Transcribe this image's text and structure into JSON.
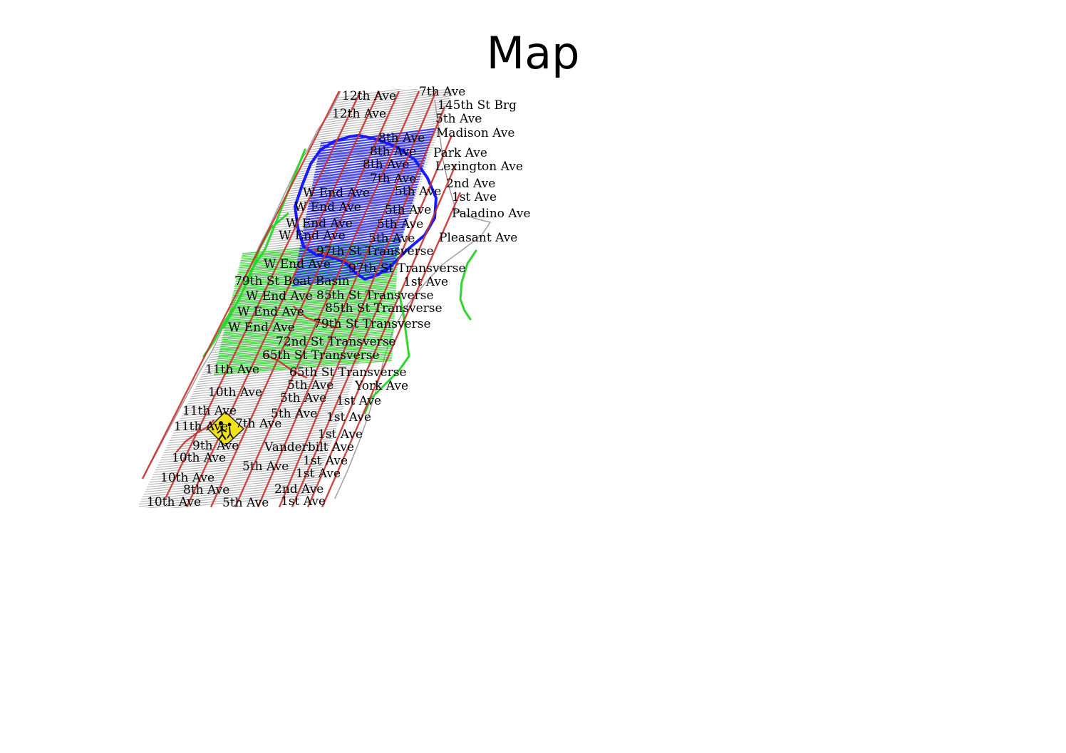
{
  "title": "Map",
  "colors": {
    "background": "#ffffff",
    "street_grid": "#9e9e9e",
    "avenue": "#c8322e",
    "park_path": "#2fd62f",
    "highlight": "#1a1aff",
    "marker": "#f2e21a"
  },
  "marker_icon": "pedestrian-crossing-warning-icon",
  "labels": [
    {
      "text": "7th Ave"
    },
    {
      "text": "12th Ave"
    },
    {
      "text": "145th St Brg"
    },
    {
      "text": "12th Ave"
    },
    {
      "text": "5th Ave"
    },
    {
      "text": "Madison Ave"
    },
    {
      "text": "8th Ave"
    },
    {
      "text": "Park Ave"
    },
    {
      "text": "8th Ave"
    },
    {
      "text": "Lexington Ave"
    },
    {
      "text": "8th Ave"
    },
    {
      "text": "7th Ave"
    },
    {
      "text": "2nd Ave"
    },
    {
      "text": "W End Ave"
    },
    {
      "text": "5th Ave"
    },
    {
      "text": "1st Ave"
    },
    {
      "text": "W End Ave"
    },
    {
      "text": "5th Ave"
    },
    {
      "text": "Paladino Ave"
    },
    {
      "text": "W End Ave"
    },
    {
      "text": "5th Ave"
    },
    {
      "text": "W End Ave"
    },
    {
      "text": "5th Ave"
    },
    {
      "text": "Pleasant Ave"
    },
    {
      "text": "97th St Transverse"
    },
    {
      "text": "W End Ave"
    },
    {
      "text": "97th St Transverse"
    },
    {
      "text": "79th St Boat Basin"
    },
    {
      "text": "1st Ave"
    },
    {
      "text": "W End Ave"
    },
    {
      "text": "85th St Transverse"
    },
    {
      "text": "85th St Transverse"
    },
    {
      "text": "W End Ave"
    },
    {
      "text": "79th St Transverse"
    },
    {
      "text": "W End Ave"
    },
    {
      "text": "72nd St Transverse"
    },
    {
      "text": "65th St Transverse"
    },
    {
      "text": "11th Ave"
    },
    {
      "text": "65th St Transverse"
    },
    {
      "text": "5th Ave"
    },
    {
      "text": "York Ave"
    },
    {
      "text": "10th Ave"
    },
    {
      "text": "5th Ave"
    },
    {
      "text": "1st Ave"
    },
    {
      "text": "11th Ave"
    },
    {
      "text": "5th Ave"
    },
    {
      "text": "1st Ave"
    },
    {
      "text": "11th Ave"
    },
    {
      "text": "7th Ave"
    },
    {
      "text": "1st Ave"
    },
    {
      "text": "9th Ave"
    },
    {
      "text": "Vanderbilt Ave"
    },
    {
      "text": "10th Ave"
    },
    {
      "text": "1st Ave"
    },
    {
      "text": "5th Ave"
    },
    {
      "text": "1st Ave"
    },
    {
      "text": "10th Ave"
    },
    {
      "text": "8th Ave"
    },
    {
      "text": "2nd Ave"
    },
    {
      "text": "10th Ave"
    },
    {
      "text": "5th Ave"
    },
    {
      "text": "1st Ave"
    }
  ]
}
